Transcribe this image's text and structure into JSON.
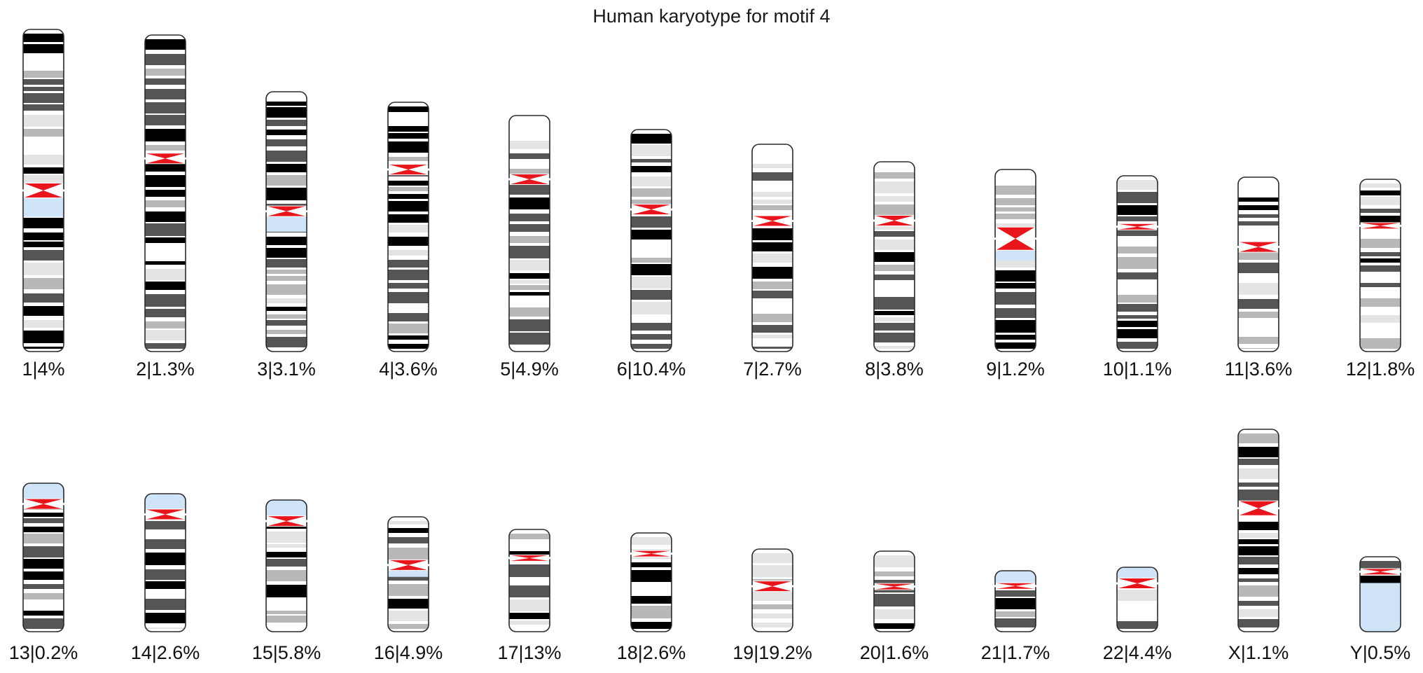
{
  "title": "Human karyotype for motif 4",
  "colors": {
    "centromere": "#e8161c",
    "heterochromatin": "#cfe5f7",
    "outline": "#2a2a2a",
    "band_dark": "#000000",
    "band_mid": "#555555",
    "band_light": "#b8b8b8",
    "band_faint": "#e4e4e4"
  },
  "rows": [
    {
      "chromosomes": [
        {
          "name": "1",
          "label": "1|4%",
          "stain_pattern": "gtg",
          "seed": 1,
          "centromere_strength": "medium",
          "p_arm_fraction": 0.5,
          "heterochromatin": "below-centromere"
        },
        {
          "name": "2",
          "label": "2|1.3%",
          "stain_pattern": "gtg",
          "seed": 2,
          "centromere_strength": "small",
          "p_arm_fraction": 0.39
        },
        {
          "name": "3",
          "label": "3|3.1%",
          "stain_pattern": "gtg",
          "seed": 3,
          "centromere_strength": "small",
          "p_arm_fraction": 0.46,
          "heterochromatin": "below-centromere"
        },
        {
          "name": "4",
          "label": "4|3.6%",
          "stain_pattern": "gtg",
          "seed": 4,
          "centromere_strength": "small",
          "p_arm_fraction": 0.27
        },
        {
          "name": "5",
          "label": "5|4.9%",
          "stain_pattern": "gtg",
          "seed": 5,
          "centromere_strength": "small",
          "p_arm_fraction": 0.27
        },
        {
          "name": "6",
          "label": "6|10.4%",
          "stain_pattern": "gtg",
          "seed": 6,
          "centromere_strength": "small",
          "p_arm_fraction": 0.36
        },
        {
          "name": "7",
          "label": "7|2.7%",
          "stain_pattern": "gtg",
          "seed": 7,
          "centromere_strength": "small",
          "p_arm_fraction": 0.37
        },
        {
          "name": "8",
          "label": "8|3.8%",
          "stain_pattern": "gtg",
          "seed": 8,
          "centromere_strength": "small",
          "p_arm_fraction": 0.31
        },
        {
          "name": "9",
          "label": "9|1.2%",
          "stain_pattern": "gtg",
          "seed": 9,
          "centromere_strength": "large",
          "p_arm_fraction": 0.38,
          "heterochromatin": "below-centromere"
        },
        {
          "name": "10",
          "label": "10|1.1%",
          "stain_pattern": "gtg",
          "seed": 10,
          "centromere_strength": "tiny",
          "p_arm_fraction": 0.29
        },
        {
          "name": "11",
          "label": "11|3.6%",
          "stain_pattern": "gtg",
          "seed": 11,
          "centromere_strength": "small",
          "p_arm_fraction": 0.4
        },
        {
          "name": "12",
          "label": "12|1.8%",
          "stain_pattern": "gtg",
          "seed": 12,
          "centromere_strength": "tiny",
          "p_arm_fraction": 0.27
        }
      ]
    },
    {
      "chromosomes": [
        {
          "name": "13",
          "label": "13|0.2%",
          "stain_pattern": "gtg",
          "seed": 13,
          "centromere_strength": "small",
          "p_arm_fraction": 0.14,
          "heterochromatin": "p-arm"
        },
        {
          "name": "14",
          "label": "14|2.6%",
          "stain_pattern": "gtg",
          "seed": 14,
          "centromere_strength": "small",
          "p_arm_fraction": 0.15,
          "heterochromatin": "p-arm"
        },
        {
          "name": "15",
          "label": "15|5.8%",
          "stain_pattern": "gtg",
          "seed": 15,
          "centromere_strength": "small",
          "p_arm_fraction": 0.16,
          "heterochromatin": "p-arm"
        },
        {
          "name": "16",
          "label": "16|4.9%",
          "stain_pattern": "gtg",
          "seed": 16,
          "centromere_strength": "small",
          "p_arm_fraction": 0.42,
          "heterochromatin": "below-centromere"
        },
        {
          "name": "17",
          "label": "17|13%",
          "stain_pattern": "gtg",
          "seed": 17,
          "centromere_strength": "tiny",
          "p_arm_fraction": 0.28
        },
        {
          "name": "18",
          "label": "18|2.6%",
          "stain_pattern": "gtg",
          "seed": 18,
          "centromere_strength": "tiny",
          "p_arm_fraction": 0.21
        },
        {
          "name": "19",
          "label": "19|19.2%",
          "stain_pattern": "light",
          "seed": 19,
          "centromere_strength": "small",
          "p_arm_fraction": 0.45,
          "heterochromatin": "around-centromere"
        },
        {
          "name": "20",
          "label": "20|1.6%",
          "stain_pattern": "gtg",
          "seed": 20,
          "centromere_strength": "tiny",
          "p_arm_fraction": 0.44
        },
        {
          "name": "21",
          "label": "21|1.7%",
          "stain_pattern": "gtg",
          "seed": 21,
          "centromere_strength": "tiny",
          "p_arm_fraction": 0.25,
          "heterochromatin": "p-arm"
        },
        {
          "name": "22",
          "label": "22|4.4%",
          "stain_pattern": "gtg",
          "seed": 22,
          "centromere_strength": "small",
          "p_arm_fraction": 0.25,
          "heterochromatin": "p-arm"
        },
        {
          "name": "X",
          "label": "X|1.1%",
          "stain_pattern": "gtg",
          "seed": 23,
          "centromere_strength": "medium",
          "p_arm_fraction": 0.39
        },
        {
          "name": "Y",
          "label": "Y|0.5%",
          "stain_pattern": "gtg",
          "seed": 24,
          "centromere_strength": "tiny",
          "p_arm_fraction": 0.2,
          "heterochromatin": "q-distal"
        }
      ]
    }
  ]
}
